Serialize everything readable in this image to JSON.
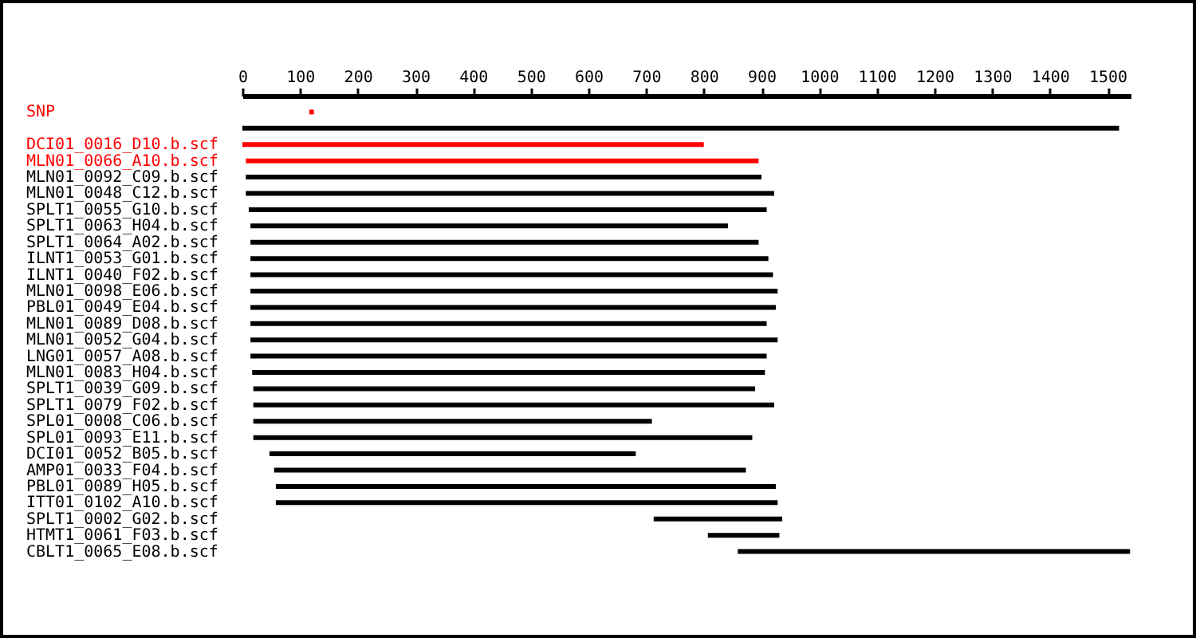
{
  "chart_data": {
    "type": "bar",
    "orientation": "horizontal",
    "categories": [
      "SNP",
      null,
      "DCI01_0016_D10.b.scf",
      "MLN01_0066_A10.b.scf",
      "MLN01_0092_C09.b.scf",
      "MLN01_0048_C12.b.scf",
      "SPLT1_0055_G10.b.scf",
      "SPLT1_0063_H04.b.scf",
      "SPLT1_0064_A02.b.scf",
      "ILNT1_0053_G01.b.scf",
      "ILNT1_0040_F02.b.scf",
      "MLN01_0098_E06.b.scf",
      "PBL01_0049_E04.b.scf",
      "MLN01_0089_D08.b.scf",
      "MLN01_0052_G04.b.scf",
      "LNG01_0057_A08.b.scf",
      "MLN01_0083_H04.b.scf",
      "SPLT1_0039_G09.b.scf",
      "SPLT1_0079_F02.b.scf",
      "SPL01_0008_C06.b.scf",
      "SPL01_0093_E11.b.scf",
      "DCI01_0052_B05.b.scf",
      "AMP01_0033_F04.b.scf",
      "PBL01_0089_H05.b.scf",
      "ITT01_0102_A10.b.scf",
      "SPLT1_0002_G02.b.scf",
      "HTMT1_0061_F03.b.scf",
      "CBLT1_0065_E08.b.scf"
    ],
    "base": [
      116,
      0,
      0,
      6,
      6,
      6,
      11,
      14,
      14,
      14,
      14,
      14,
      14,
      14,
      14,
      14,
      17,
      19,
      19,
      19,
      19,
      47,
      55,
      58,
      58,
      713,
      807,
      859
    ],
    "values": [
      8,
      1520,
      800,
      889,
      894,
      916,
      898,
      828,
      881,
      898,
      906,
      914,
      911,
      895,
      914,
      895,
      889,
      870,
      903,
      691,
      865,
      635,
      818,
      867,
      870,
      223,
      124,
      680
    ],
    "colors": [
      "#ff0000",
      "#000000",
      "#ff0000",
      "#ff0000",
      "#000000",
      "#000000",
      "#000000",
      "#000000",
      "#000000",
      "#000000",
      "#000000",
      "#000000",
      "#000000",
      "#000000",
      "#000000",
      "#000000",
      "#000000",
      "#000000",
      "#000000",
      "#000000",
      "#000000",
      "#000000",
      "#000000",
      "#000000",
      "#000000",
      "#000000",
      "#000000",
      "#000000"
    ],
    "xlim": [
      0,
      1540
    ],
    "xticks": [
      0,
      100,
      200,
      300,
      400,
      500,
      600,
      700,
      800,
      900,
      1000,
      1100,
      1200,
      1300,
      1400,
      1500
    ]
  }
}
